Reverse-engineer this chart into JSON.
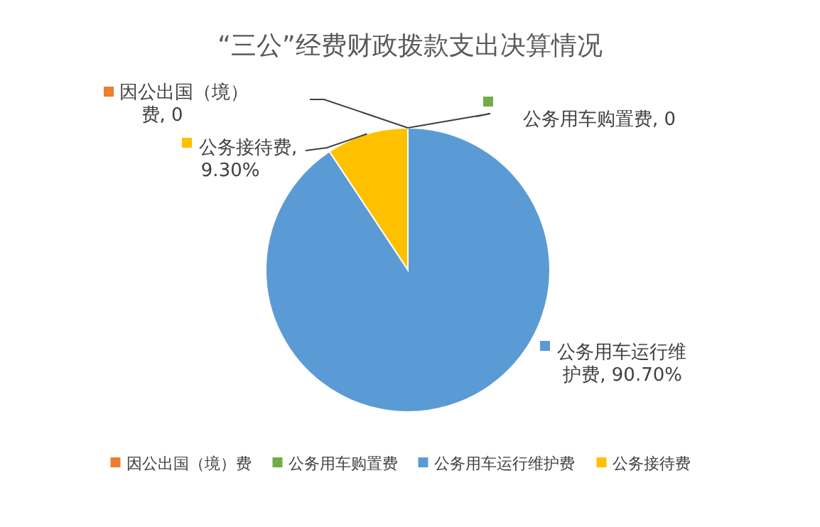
{
  "chart_data": {
    "type": "pie",
    "title": "“三公”经费财政拨款支出决算情况",
    "categories": [
      "因公出国（境）费",
      "公务用车购置费",
      "公务用车运行维护费",
      "公务接待费"
    ],
    "values": [
      0,
      0,
      90.7,
      9.3
    ],
    "value_labels": [
      "因公出国（境）费, 0",
      "公务用车购置费, 0",
      "公务用车运行维护费, 90.70%",
      "公务接待费, 9.30%"
    ],
    "colors": [
      "#ed7d31",
      "#70ad47",
      "#5b9bd5",
      "#ffc000"
    ],
    "legend": "bottom"
  }
}
